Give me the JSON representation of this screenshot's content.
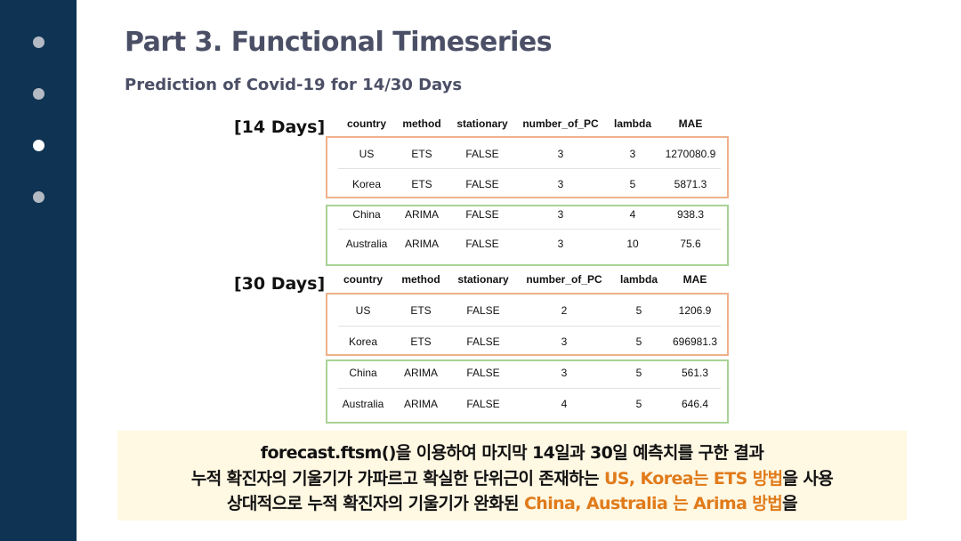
{
  "slide": {
    "title": "Part 3. Functional Timeseries",
    "subtitle": "Prediction of Covid-19 for 14/30 Days"
  },
  "colors": {
    "sidebar": "#0f3352",
    "orange_box": "#f0b18a",
    "green_box": "#a8d394",
    "highlight": "#e07b1b",
    "callout_bg": "#fff8e3"
  },
  "headers": [
    "country",
    "method",
    "stationary",
    "number_of_PC",
    "lambda",
    "MAE"
  ],
  "table14": {
    "label": "[14 Days]",
    "rows": [
      [
        "US",
        "ETS",
        "FALSE",
        "3",
        "3",
        "1270080.9"
      ],
      [
        "Korea",
        "ETS",
        "FALSE",
        "3",
        "5",
        "5871.3"
      ],
      [
        "China",
        "ARIMA",
        "FALSE",
        "3",
        "4",
        "938.3"
      ],
      [
        "Australia",
        "ARIMA",
        "FALSE",
        "3",
        "10",
        "75.6"
      ]
    ]
  },
  "table30": {
    "label": "[30 Days]",
    "rows": [
      [
        "US",
        "ETS",
        "FALSE",
        "2",
        "5",
        "1206.9"
      ],
      [
        "Korea",
        "ETS",
        "FALSE",
        "3",
        "5",
        "696981.3"
      ],
      [
        "China",
        "ARIMA",
        "FALSE",
        "3",
        "5",
        "561.3"
      ],
      [
        "Australia",
        "ARIMA",
        "FALSE",
        "4",
        "5",
        "646.4"
      ]
    ]
  },
  "summary": {
    "line1": "forecast.ftsm()을 이용하여 마지막 14일과 30일 예측치를 구한 결과",
    "line2_pre": "누적 확진자의 기울기가 가파르고 확실한 단위근이 존재하는 ",
    "line2_hl": "US, Korea는 ETS 방법",
    "line2_post": "을 사용",
    "line3_pre": "상대적으로 누적 확진자의 기울기가 완화된 ",
    "line3_hl": "China, Australia 는 Arima 방법",
    "line3_post": "을"
  }
}
